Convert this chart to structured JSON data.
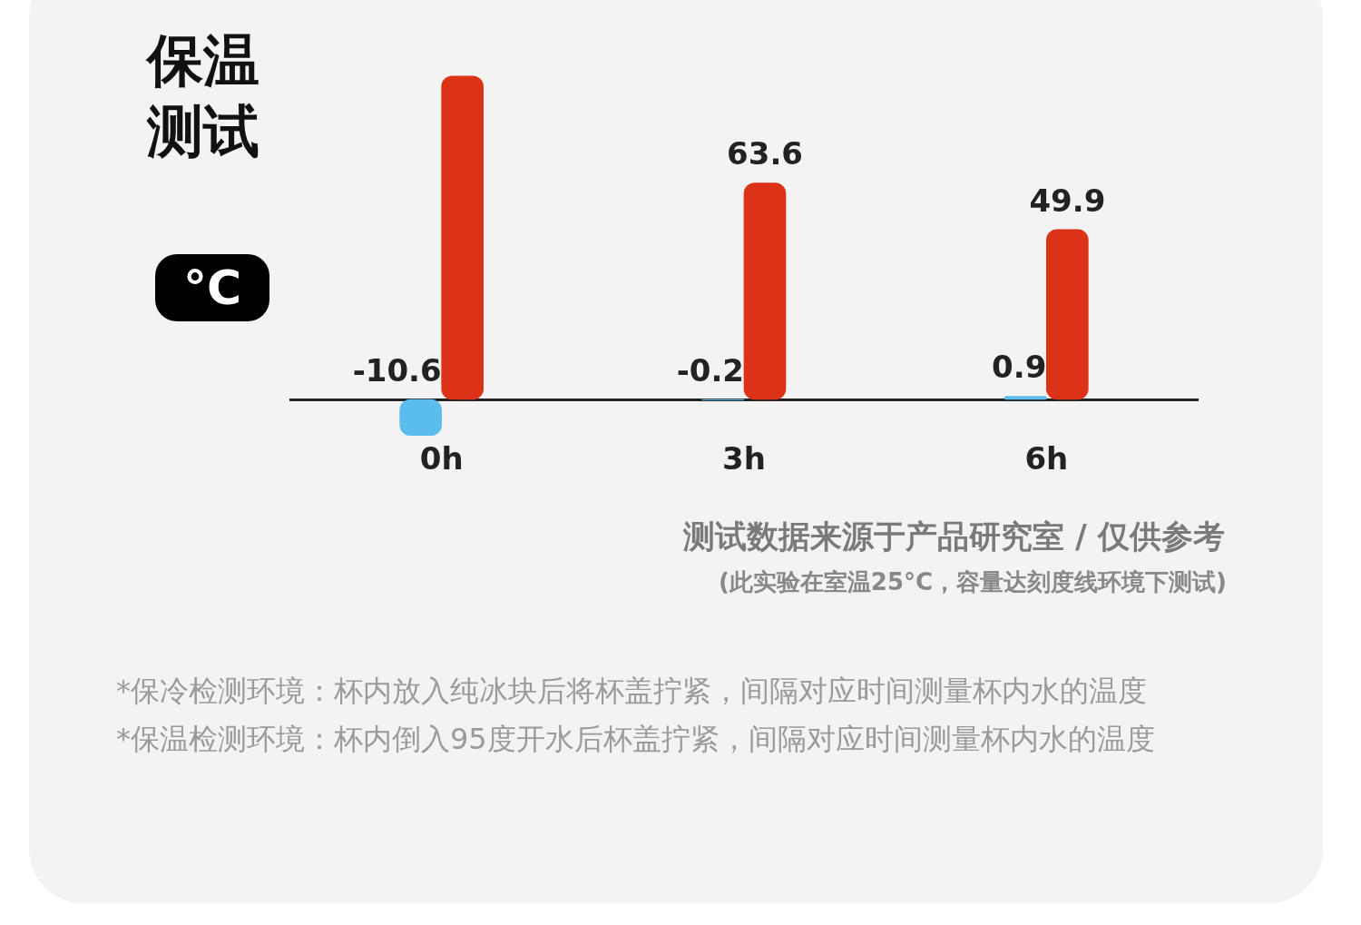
{
  "chart_data": {
    "type": "bar",
    "title": "保温测试",
    "ylabel": "°C",
    "categories": [
      "0h",
      "3h",
      "6h"
    ],
    "series": [
      {
        "color": "#5bbdec",
        "values": [
          -10.6,
          -0.2,
          0.9
        ],
        "value_labels": [
          "-10.6",
          "-0.2",
          "0.9"
        ]
      },
      {
        "color": "#dc3218",
        "values": [
          95,
          63.6,
          49.9
        ],
        "value_labels": [
          null,
          "63.6",
          "49.9"
        ]
      }
    ],
    "tick_labels": "x",
    "annotations": [
      "测试数据来源于产品研究室 / 仅供参考",
      "(此实验在室温25°C，容量达刻度线环境下测试)",
      "*保冷检测环境：杯内放入纯冰块后将杯盖拧紧，间隔对应时间测量杯内水的温度",
      "*保温检测环境：杯内倒入95度开水后杯盖拧紧，间隔对应时间测量杯内水的温度"
    ]
  }
}
